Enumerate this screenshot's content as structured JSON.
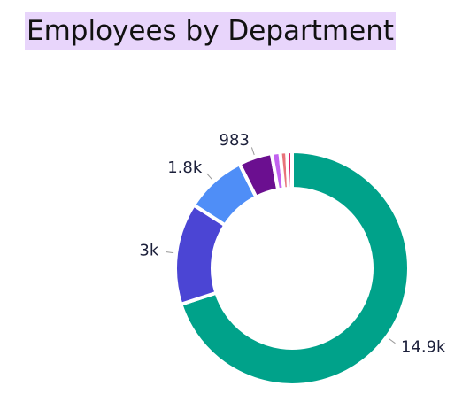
{
  "chart_data": {
    "type": "donut",
    "title": "Employees by Department",
    "values": [
      14900,
      3000,
      1800,
      983,
      250,
      200,
      150
    ],
    "value_labels": [
      "14.9k",
      "3k",
      "1.8k",
      "983",
      null,
      null,
      null
    ],
    "colors": [
      "#00a28a",
      "#4b45d4",
      "#4f8ef7",
      "#6b0f90",
      "#c262f0",
      "#e8737a",
      "#d81f6a"
    ]
  }
}
